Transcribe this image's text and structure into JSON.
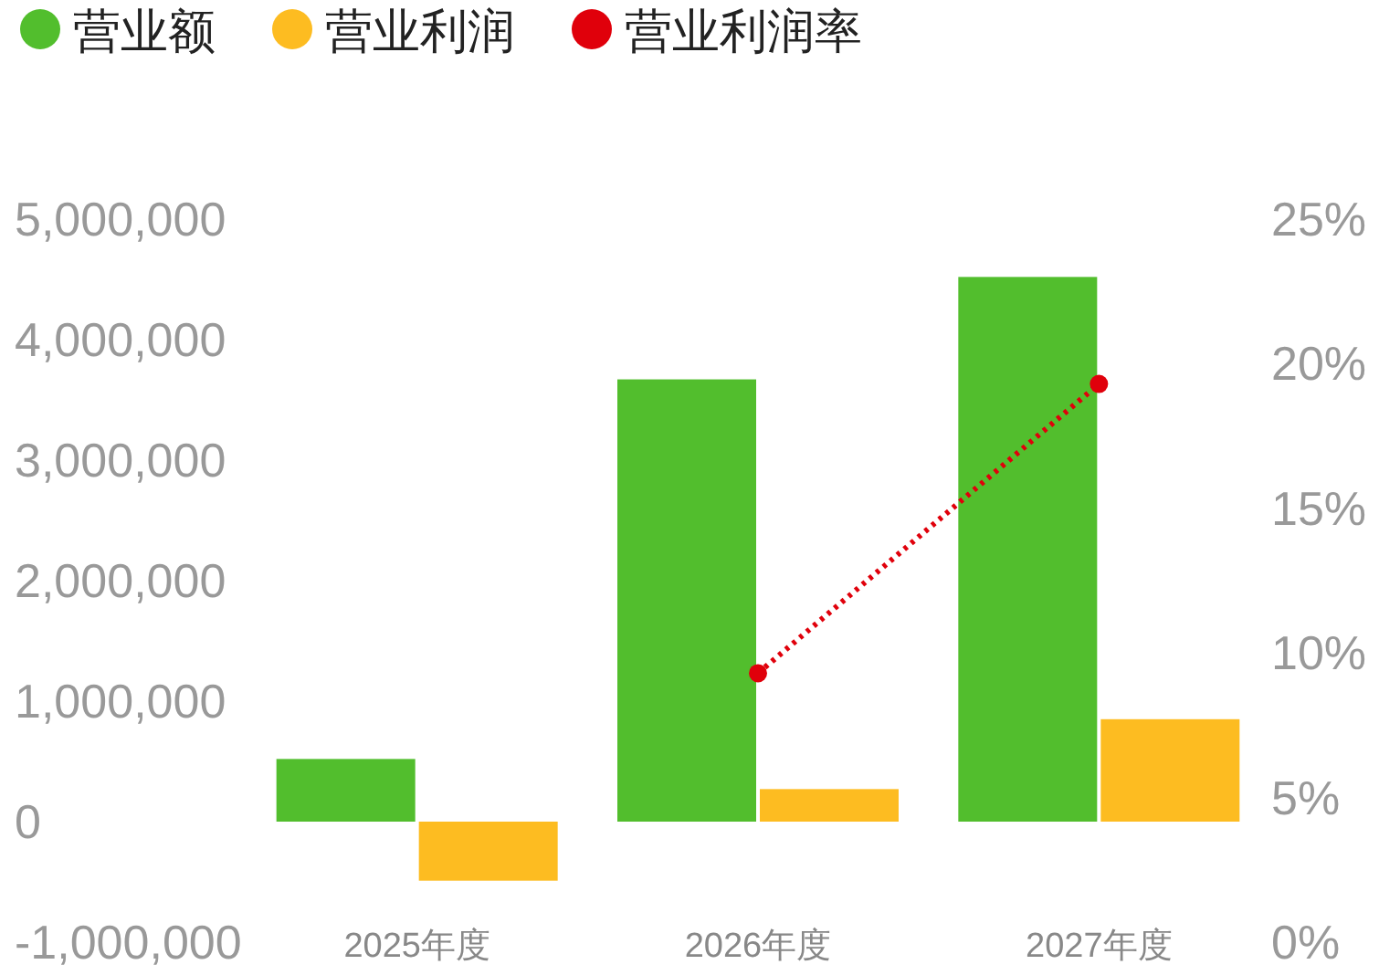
{
  "chart_data": {
    "type": "bar",
    "categories": [
      "2025年度",
      "2026年度",
      "2027年度"
    ],
    "series": [
      {
        "name": "营业额",
        "color": "#52be2d",
        "values": [
          520000,
          3670000,
          4520000
        ]
      },
      {
        "name": "营业利润",
        "color": "#fdbc21",
        "values": [
          -490000,
          270000,
          850000
        ]
      },
      {
        "name": "营业利润率",
        "type": "line",
        "axis": "y2",
        "color": "#e0000b",
        "values": [
          null,
          9.3,
          19.3
        ],
        "marker": "circle",
        "line_style": "dotted"
      }
    ],
    "ylim": [
      -1000000,
      5000000
    ],
    "yticks": [
      {
        "value": -1000000,
        "label": "-1,000,000"
      },
      {
        "value": 0,
        "label": "0"
      },
      {
        "value": 1000000,
        "label": "1,000,000"
      },
      {
        "value": 2000000,
        "label": "2,000,000"
      },
      {
        "value": 3000000,
        "label": "3,000,000"
      },
      {
        "value": 4000000,
        "label": "4,000,000"
      },
      {
        "value": 5000000,
        "label": "5,000,000"
      }
    ],
    "y2lim": [
      0,
      25
    ],
    "y2ticks": [
      {
        "value": 0,
        "label": "0%"
      },
      {
        "value": 5,
        "label": "5%"
      },
      {
        "value": 10,
        "label": "10%"
      },
      {
        "value": 15,
        "label": "15%"
      },
      {
        "value": 20,
        "label": "20%"
      },
      {
        "value": 25,
        "label": "25%"
      }
    ],
    "legend": "top left",
    "grid": false
  }
}
